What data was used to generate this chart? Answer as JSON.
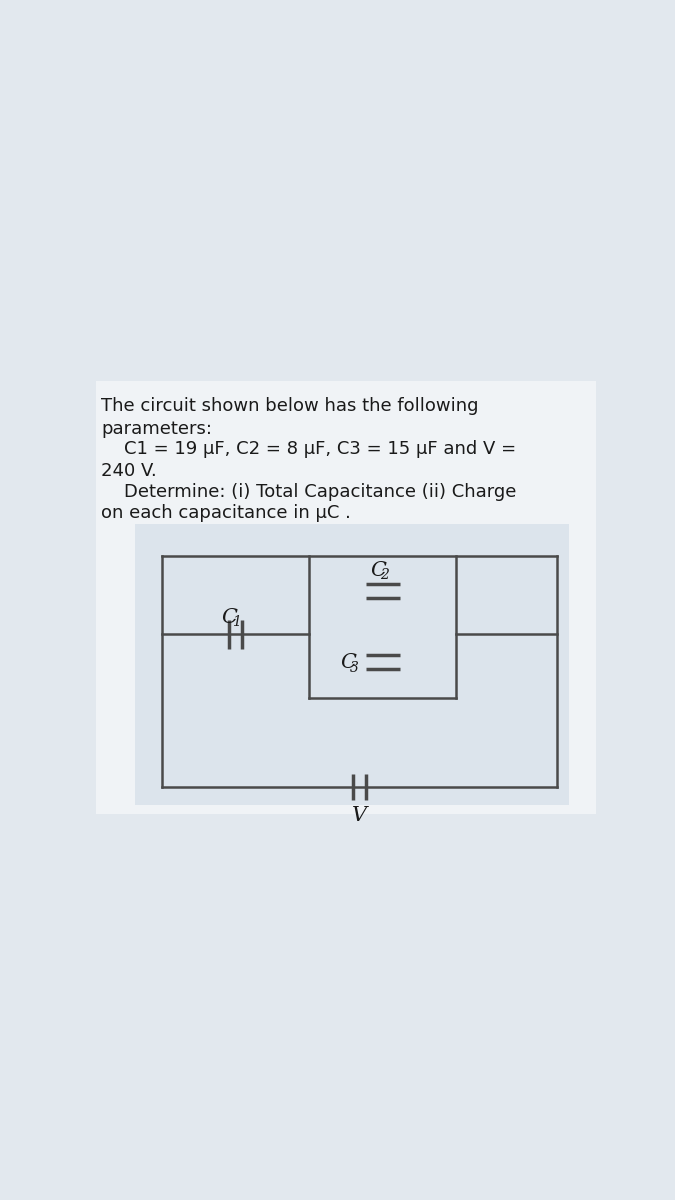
{
  "bg_outer": "#e2e8ee",
  "bg_card": "#f0f3f6",
  "bg_circuit": "#edf1f5",
  "text_color": "#1a1a1a",
  "line_color": "#4a4a4a",
  "title_lines": [
    "The circuit shown below has the following",
    "parameters:",
    "    C1 = 19 μF, C2 = 8 μF, C3 = 15 μF and V =",
    "240 V.",
    "    Determine: (i) Total Capacitance (ii) Charge",
    "on each capacitance in μC ."
  ],
  "font_size_text": 13.0,
  "cap_label_C1": "C",
  "cap_label_C1_sub": "1",
  "cap_label_C2": "C",
  "cap_label_C2_sub": "2",
  "cap_label_C3": "C",
  "cap_label_C3_sub": "3",
  "voltage_label": "V"
}
